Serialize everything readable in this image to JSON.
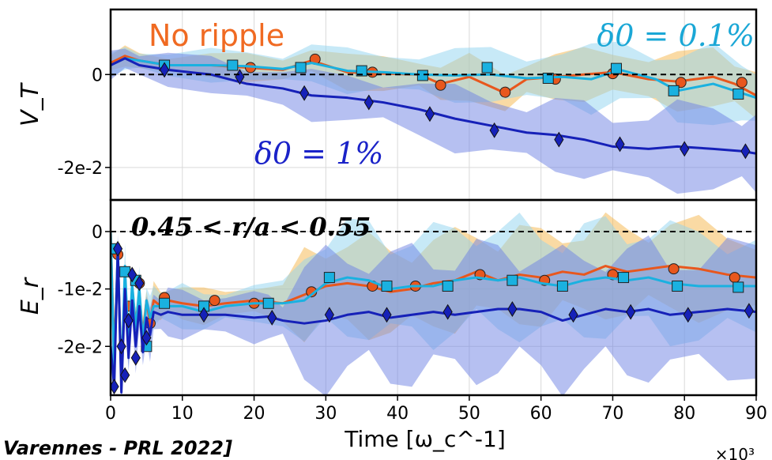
{
  "citation": "Varennes - PRL 2022]",
  "chart_data": [
    {
      "type": "line",
      "panel": "top",
      "ylabel": "V_T",
      "xlim": [
        0,
        90
      ],
      "ylim": [
        -0.027,
        0.014
      ],
      "yticks": [
        0,
        -0.02
      ],
      "ytick_labels": [
        "0",
        "-2e-2"
      ],
      "zero_line": true,
      "grid": true,
      "annotations": [
        "No ripple",
        "δ0 = 0.1%",
        "δ0 = 1%"
      ],
      "series": [
        {
          "name": "No ripple",
          "color": "#e8571d",
          "band": "#f6b64a",
          "marker": "circle",
          "x": [
            0,
            2,
            4,
            8,
            14,
            19,
            24,
            28,
            33,
            38,
            43,
            46,
            50,
            55,
            58,
            62,
            66,
            70,
            75,
            79,
            84,
            87,
            90
          ],
          "y": [
            0.0025,
            0.004,
            0.003,
            0.002,
            0.002,
            0.0015,
            0.001,
            0.003,
            0.0005,
            0.0002,
            0.0,
            -0.002,
            -0.0005,
            -0.004,
            -0.001,
            -0.0005,
            0.0,
            0.0005,
            -0.001,
            -0.0015,
            -0.0005,
            -0.002,
            -0.0045
          ],
          "markers_x": [
            7.5,
            19.5,
            28.5,
            36.5,
            46,
            55,
            62,
            70,
            79.5,
            88
          ],
          "markers_y": [
            0.0015,
            0.0015,
            0.0033,
            0.0005,
            -0.0023,
            -0.0038,
            -0.001,
            0.0002,
            -0.0017,
            -0.0017
          ]
        },
        {
          "name": "δ0 = 0.1%",
          "color": "#1ab1e0",
          "band": "#8fd3ef",
          "marker": "square",
          "x": [
            0,
            2,
            4,
            8,
            14,
            19,
            24,
            28,
            33,
            38,
            43,
            48,
            53,
            58,
            63,
            67,
            71,
            76,
            79,
            84,
            88,
            90
          ],
          "y": [
            0.002,
            0.0035,
            0.003,
            0.002,
            0.002,
            0.0018,
            0.0012,
            0.0025,
            0.0008,
            0.0005,
            0.0,
            -0.0002,
            0.0,
            -0.0008,
            -0.0005,
            -0.001,
            0.001,
            -0.001,
            -0.0035,
            -0.002,
            -0.004,
            -0.005
          ],
          "markers_x": [
            7.5,
            17,
            26.5,
            35,
            43.5,
            52.5,
            61,
            70.5,
            78.5,
            87.5
          ],
          "markers_y": [
            0.002,
            0.002,
            0.0015,
            0.0008,
            -0.0002,
            0.0015,
            -0.0008,
            0.0013,
            -0.0035,
            -0.0042
          ]
        },
        {
          "name": "δ0 = 1%",
          "color": "#1621b8",
          "band": "#6d82e4",
          "marker": "diamond",
          "x": [
            0,
            2,
            4,
            8,
            14,
            19,
            24,
            28,
            33,
            38,
            43,
            48,
            53,
            58,
            62,
            66,
            70,
            75,
            79,
            84,
            88,
            90
          ],
          "y": [
            0.002,
            0.0035,
            0.002,
            0.001,
            0.0,
            -0.002,
            -0.003,
            -0.0045,
            -0.005,
            -0.006,
            -0.0075,
            -0.0095,
            -0.011,
            -0.0125,
            -0.013,
            -0.014,
            -0.0155,
            -0.016,
            -0.0155,
            -0.016,
            -0.0165,
            -0.017
          ],
          "markers_x": [
            7.5,
            18,
            27,
            36,
            44.5,
            53.5,
            62.5,
            71,
            80,
            88.5
          ],
          "markers_y": [
            0.001,
            -0.0005,
            -0.004,
            -0.006,
            -0.0085,
            -0.012,
            -0.014,
            -0.015,
            -0.016,
            -0.0165
          ]
        }
      ]
    },
    {
      "type": "line",
      "panel": "bottom",
      "ylabel": "E_r",
      "xlabel": "Time [ω_c^-1]",
      "xlim": [
        0,
        90
      ],
      "xticks": [
        0,
        10,
        20,
        30,
        40,
        50,
        60,
        70,
        80,
        90
      ],
      "x_multiplier": "×10³",
      "ylim": [
        -0.0285,
        0.0055
      ],
      "yticks": [
        0,
        -0.01,
        -0.02
      ],
      "ytick_labels": [
        "0",
        "-1e-2",
        "-2e-2"
      ],
      "zero_line": true,
      "grid": true,
      "annotations": [
        "0.45 < r/a < 0.55"
      ],
      "series": [
        {
          "name": "No ripple",
          "color": "#e8571d",
          "band": "#f6b64a",
          "marker": "circle",
          "x": [
            0,
            0.5,
            1,
            1.5,
            2,
            2.5,
            3,
            3.5,
            4,
            4.5,
            5,
            5.5,
            6,
            7,
            8,
            10,
            13,
            16,
            20,
            24,
            27,
            30,
            33,
            36,
            39,
            42,
            45,
            48,
            51,
            54,
            57,
            60,
            63,
            66,
            69,
            72,
            75,
            78,
            82,
            86,
            90
          ],
          "y": [
            0.0,
            -0.022,
            -0.004,
            -0.025,
            -0.008,
            -0.02,
            -0.01,
            -0.016,
            -0.011,
            -0.018,
            -0.012,
            -0.016,
            -0.012,
            -0.013,
            -0.012,
            -0.0125,
            -0.013,
            -0.0125,
            -0.012,
            -0.0125,
            -0.011,
            -0.0095,
            -0.009,
            -0.0095,
            -0.0105,
            -0.01,
            -0.009,
            -0.0085,
            -0.007,
            -0.0085,
            -0.0075,
            -0.008,
            -0.007,
            -0.0075,
            -0.006,
            -0.007,
            -0.0065,
            -0.006,
            -0.0065,
            -0.0075,
            -0.008
          ],
          "markers_x": [
            1,
            2.5,
            4,
            5.5,
            7.5,
            14.5,
            20,
            28,
            36.5,
            42.5,
            51.5,
            60.5,
            70,
            78.5,
            87
          ],
          "markers_y": [
            -0.004,
            -0.013,
            -0.009,
            -0.016,
            -0.0115,
            -0.012,
            -0.0125,
            -0.0105,
            -0.0095,
            -0.0095,
            -0.0075,
            -0.0085,
            -0.0075,
            -0.0065,
            -0.008
          ]
        },
        {
          "name": "δ0 = 0.1%",
          "color": "#1ab1e0",
          "band": "#8fd3ef",
          "marker": "square",
          "x": [
            0,
            0.5,
            1,
            1.5,
            2,
            2.5,
            3,
            3.5,
            4,
            4.5,
            5,
            5.5,
            6,
            7,
            8,
            10,
            13,
            16,
            20,
            24,
            27,
            30,
            33,
            36,
            39,
            42,
            45,
            48,
            51,
            54,
            57,
            60,
            63,
            66,
            69,
            72,
            75,
            78,
            82,
            86,
            90
          ],
          "y": [
            0.0,
            -0.024,
            -0.003,
            -0.026,
            -0.006,
            -0.021,
            -0.009,
            -0.017,
            -0.01,
            -0.019,
            -0.012,
            -0.015,
            -0.013,
            -0.013,
            -0.013,
            -0.013,
            -0.014,
            -0.013,
            -0.0125,
            -0.0125,
            -0.012,
            -0.009,
            -0.008,
            -0.0085,
            -0.01,
            -0.0095,
            -0.0095,
            -0.0085,
            -0.008,
            -0.0085,
            -0.008,
            -0.009,
            -0.0095,
            -0.0085,
            -0.008,
            -0.0085,
            -0.008,
            -0.009,
            -0.0095,
            -0.0095,
            -0.0095
          ],
          "markers_x": [
            0.5,
            2,
            3.5,
            5,
            7.5,
            13,
            22,
            30.5,
            38.5,
            47,
            56,
            63,
            71.5,
            79,
            87.5
          ],
          "markers_y": [
            -0.003,
            -0.007,
            -0.0085,
            -0.02,
            -0.0125,
            -0.013,
            -0.0125,
            -0.008,
            -0.0095,
            -0.0095,
            -0.0085,
            -0.0095,
            -0.008,
            -0.0095,
            -0.0097
          ]
        },
        {
          "name": "δ0 = 1%",
          "color": "#1621b8",
          "band": "#6d82e4",
          "marker": "diamond",
          "x": [
            0,
            0.5,
            1,
            1.5,
            2,
            2.5,
            3,
            3.5,
            4,
            4.5,
            5,
            5.5,
            6,
            7,
            8,
            10,
            13,
            16,
            20,
            22,
            24,
            27,
            30,
            33,
            36,
            39,
            42,
            45,
            48,
            51,
            54,
            57,
            60,
            63,
            66,
            69,
            72,
            75,
            78,
            82,
            86,
            90
          ],
          "y": [
            -0.02,
            -0.027,
            -0.003,
            -0.028,
            -0.01,
            -0.022,
            -0.012,
            -0.02,
            -0.013,
            -0.021,
            -0.015,
            -0.018,
            -0.014,
            -0.0145,
            -0.014,
            -0.0145,
            -0.0145,
            -0.0145,
            -0.015,
            -0.0148,
            -0.0155,
            -0.016,
            -0.0155,
            -0.0145,
            -0.014,
            -0.015,
            -0.0145,
            -0.014,
            -0.0145,
            -0.014,
            -0.0135,
            -0.0135,
            -0.014,
            -0.0155,
            -0.0145,
            -0.0135,
            -0.014,
            -0.0135,
            -0.0145,
            -0.014,
            -0.0135,
            -0.014
          ],
          "markers_x": [
            0.5,
            1,
            1.5,
            2,
            2.5,
            3,
            3.5,
            4,
            5,
            13,
            22.5,
            30.5,
            38.5,
            47,
            56,
            64.5,
            72.5,
            80.5,
            89
          ],
          "markers_y": [
            -0.027,
            -0.003,
            -0.02,
            -0.025,
            -0.0155,
            -0.0075,
            -0.022,
            -0.009,
            -0.0185,
            -0.0145,
            -0.015,
            -0.0145,
            -0.0145,
            -0.014,
            -0.0135,
            -0.0145,
            -0.014,
            -0.0145,
            -0.0138
          ]
        }
      ]
    }
  ]
}
